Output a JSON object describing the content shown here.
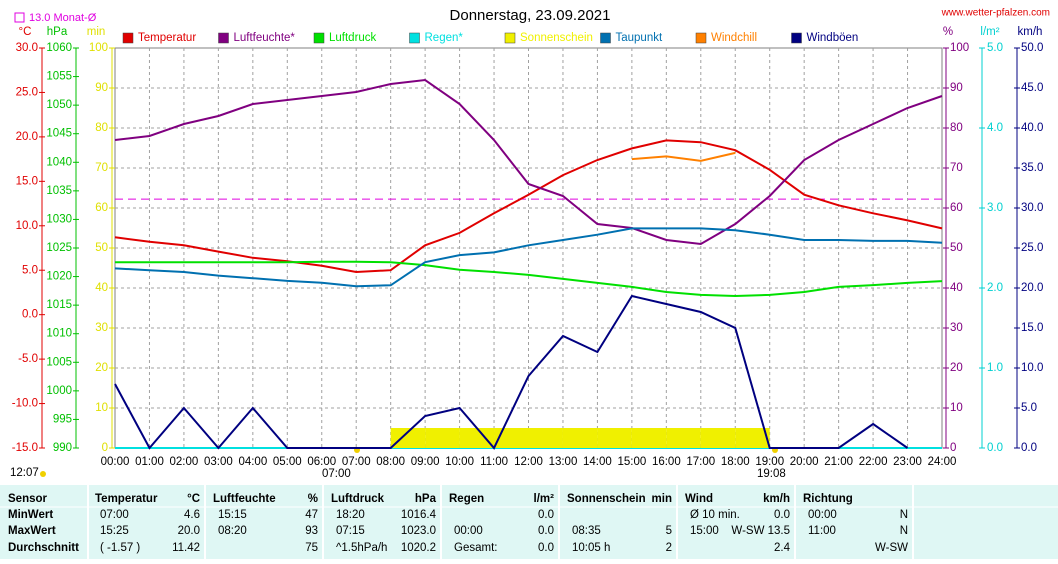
{
  "chart_data": {
    "type": "line",
    "title": "Donnerstag, 23.09.2021",
    "source": "www.wetter-pfalzen.com",
    "month_avg": {
      "value": 13,
      "label": "13.0 Monat-Ø"
    },
    "sunrise": "07:00",
    "sunset": "19:08",
    "day_length": "12:07",
    "grid": true,
    "x": [
      0,
      1,
      2,
      3,
      4,
      5,
      6,
      7,
      8,
      9,
      10,
      11,
      12,
      13,
      14,
      15,
      16,
      17,
      18,
      19,
      20,
      21,
      22,
      23,
      24
    ],
    "xlim": [
      0,
      24
    ],
    "xticks": [
      {
        "value": 0,
        "label": "00:00"
      },
      {
        "value": 1,
        "label": "01:00"
      },
      {
        "value": 2,
        "label": "02:00"
      },
      {
        "value": 3,
        "label": "03:00"
      },
      {
        "value": 4,
        "label": "04:00"
      },
      {
        "value": 5,
        "label": "05:00"
      },
      {
        "value": 6,
        "label": "06:00"
      },
      {
        "value": 7,
        "label": "07:00"
      },
      {
        "value": 8,
        "label": "08:00"
      },
      {
        "value": 9,
        "label": "09:00"
      },
      {
        "value": 10,
        "label": "10:00"
      },
      {
        "value": 11,
        "label": "11:00"
      },
      {
        "value": 12,
        "label": "12:00"
      },
      {
        "value": 13,
        "label": "13:00"
      },
      {
        "value": 14,
        "label": "14:00"
      },
      {
        "value": 15,
        "label": "15:00"
      },
      {
        "value": 16,
        "label": "16:00"
      },
      {
        "value": 17,
        "label": "17:00"
      },
      {
        "value": 18,
        "label": "18:00"
      },
      {
        "value": 19,
        "label": "19:00"
      },
      {
        "value": 20,
        "label": "20:00"
      },
      {
        "value": 21,
        "label": "21:00"
      },
      {
        "value": 22,
        "label": "22:00"
      },
      {
        "value": 23,
        "label": "23:00"
      },
      {
        "value": 24,
        "label": "24:00"
      }
    ],
    "ylabel": "°C",
    "ycolor": "#e00000",
    "ylim": [
      -15,
      30
    ],
    "yticks": [
      {
        "value": -15,
        "label": "-15.0"
      },
      {
        "value": -10,
        "label": "-10.0"
      },
      {
        "value": -5,
        "label": "-5.0"
      },
      {
        "value": 0,
        "label": "0.0"
      },
      {
        "value": 5,
        "label": "5.0"
      },
      {
        "value": 10,
        "label": "10.0"
      },
      {
        "value": 15,
        "label": "15.0"
      },
      {
        "value": 20,
        "label": "20.0"
      },
      {
        "value": 25,
        "label": "25.0"
      },
      {
        "value": 30,
        "label": "30.0"
      }
    ],
    "y2label": "hPa",
    "y2color": "#00c000",
    "y2lim": [
      990,
      1060
    ],
    "y2ticks": [
      990,
      995,
      1000,
      1005,
      1010,
      1015,
      1020,
      1025,
      1030,
      1035,
      1040,
      1045,
      1050,
      1055,
      1060
    ],
    "y3label": "min",
    "y3color": "#e0e000",
    "y3lim": [
      0,
      100
    ],
    "y3ticks": [
      0,
      10,
      20,
      30,
      40,
      50,
      60,
      70,
      80,
      90,
      100
    ],
    "y4label": "%",
    "y4color": "#800080",
    "y4lim": [
      0,
      100
    ],
    "y4ticks": [
      0,
      10,
      20,
      30,
      40,
      50,
      60,
      70,
      80,
      90,
      100
    ],
    "y5label": "l/m²",
    "y5color": "#00d0d0",
    "y5lim": [
      0,
      5
    ],
    "y5ticks": [
      {
        "value": 0,
        "label": "0.0"
      },
      {
        "value": 1,
        "label": "1.0"
      },
      {
        "value": 2,
        "label": "2.0"
      },
      {
        "value": 3,
        "label": "3.0"
      },
      {
        "value": 4,
        "label": "4.0"
      },
      {
        "value": 5,
        "label": "5.0"
      }
    ],
    "y6label": "km/h",
    "y6color": "#000080",
    "y6lim": [
      0,
      50
    ],
    "y6ticks": [
      {
        "value": 0,
        "label": "0.0"
      },
      {
        "value": 5,
        "label": "5.0"
      },
      {
        "value": 10,
        "label": "10.0"
      },
      {
        "value": 15,
        "label": "15.0"
      },
      {
        "value": 20,
        "label": "20.0"
      },
      {
        "value": 25,
        "label": "25.0"
      },
      {
        "value": 30,
        "label": "30.0"
      },
      {
        "value": 35,
        "label": "35.0"
      },
      {
        "value": 40,
        "label": "40.0"
      },
      {
        "value": 45,
        "label": "45.0"
      },
      {
        "value": 50,
        "label": "50.0"
      }
    ],
    "series": [
      {
        "name": "Temperatur",
        "color": "#e00000",
        "axis": "y",
        "values": [
          8.7,
          8.2,
          7.8,
          7.1,
          6.4,
          6.0,
          5.5,
          4.8,
          5.0,
          7.8,
          9.2,
          11.4,
          13.5,
          15.7,
          17.4,
          18.7,
          19.6,
          19.4,
          18.5,
          16.3,
          13.5,
          12.3,
          11.4,
          10.6,
          9.7
        ]
      },
      {
        "name": "Luftfeuchte*",
        "color": "#800080",
        "axis": "y4",
        "values": [
          77,
          78,
          81,
          83,
          86,
          87,
          88,
          89,
          91,
          92,
          86,
          77,
          66,
          63,
          56,
          55,
          52,
          51,
          56,
          63,
          72,
          77,
          81,
          85,
          88
        ]
      },
      {
        "name": "Luftdruck",
        "color": "#00e000",
        "axis": "y2",
        "values": [
          1022.5,
          1022.5,
          1022.5,
          1022.5,
          1022.5,
          1022.5,
          1022.6,
          1022.6,
          1022.5,
          1022.0,
          1021.2,
          1020.8,
          1020.3,
          1019.6,
          1018.9,
          1018.2,
          1017.3,
          1016.8,
          1016.6,
          1016.8,
          1017.3,
          1018.2,
          1018.5,
          1018.9,
          1019.2
        ]
      },
      {
        "name": "Regen*",
        "color": "#00e0e0",
        "axis": "y5",
        "values": [
          0,
          0,
          0,
          0,
          0,
          0,
          0,
          0,
          0,
          0,
          0,
          0,
          0,
          0,
          0,
          0,
          0,
          0,
          0,
          0,
          0,
          0,
          0,
          0,
          0
        ]
      },
      {
        "name": "Sonnenschein",
        "color": "#f0f000",
        "axis": "y3",
        "values": [
          0,
          0,
          0,
          0,
          0,
          0,
          0,
          0,
          5,
          5,
          5,
          5,
          5,
          5,
          5,
          5,
          5,
          5,
          5,
          0,
          0,
          0,
          0,
          0,
          null
        ]
      },
      {
        "name": "Taupunkt",
        "color": "#0070b0",
        "axis": "y",
        "values": [
          5.2,
          5.0,
          4.8,
          4.4,
          4.1,
          3.8,
          3.6,
          3.2,
          3.3,
          5.9,
          6.7,
          7.0,
          7.8,
          8.4,
          9.0,
          9.7,
          9.7,
          9.7,
          9.5,
          9.0,
          8.4,
          8.4,
          8.3,
          8.3,
          8.1
        ]
      },
      {
        "name": "Windchill",
        "color": "#ff8000",
        "axis": "y",
        "values": [
          null,
          null,
          null,
          null,
          null,
          null,
          null,
          null,
          null,
          null,
          null,
          null,
          null,
          null,
          null,
          17.5,
          17.8,
          17.3,
          18.2,
          null,
          null,
          null,
          null,
          null,
          null
        ]
      },
      {
        "name": "Windböen",
        "color": "#000080",
        "axis": "y6",
        "values": [
          8,
          0,
          5,
          0,
          5,
          0,
          0,
          0,
          0,
          4,
          5,
          0,
          9,
          14,
          12,
          19,
          18,
          17,
          15,
          0,
          0,
          0,
          3,
          0,
          null
        ]
      }
    ]
  },
  "table": {
    "row_labels": [
      "Sensor",
      "MinWert",
      "MaxWert",
      "Durchschnitt"
    ],
    "columns": [
      {
        "name": "Temperatur",
        "unit": "°C",
        "rows": [
          [
            "07:00",
            "4.6"
          ],
          [
            "15:25",
            "20.0"
          ],
          [
            "( -1.57 )",
            "11.42"
          ]
        ]
      },
      {
        "name": "Luftfeuchte",
        "unit": "%",
        "rows": [
          [
            "15:15",
            "47"
          ],
          [
            "08:20",
            "93"
          ],
          [
            null,
            "75"
          ]
        ]
      },
      {
        "name": "Luftdruck",
        "unit": "hPa",
        "rows": [
          [
            "18:20",
            "1016.4"
          ],
          [
            "07:15",
            "1023.0"
          ],
          [
            "^1.5hPa/h",
            "1020.2"
          ]
        ]
      },
      {
        "name": "Regen",
        "unit": "l/m²",
        "rows": [
          [
            null,
            "0.0"
          ],
          [
            "00:00",
            "0.0"
          ],
          [
            "Gesamt:",
            "0.0"
          ]
        ]
      },
      {
        "name": "Sonnenschein",
        "unit": "min",
        "rows": [
          [
            null,
            null
          ],
          [
            "08:35",
            "5"
          ],
          [
            "10:05 h",
            "2"
          ]
        ]
      },
      {
        "name": "Wind",
        "unit": "km/h",
        "rows": [
          [
            "Ø 10 min.",
            "0.0"
          ],
          [
            "15:00",
            "W-SW 13.5"
          ],
          [
            null,
            "2.4"
          ]
        ]
      },
      {
        "name": "Richtung",
        "unit": null,
        "rows": [
          [
            "00:00",
            "N"
          ],
          [
            "11:00",
            "N"
          ],
          [
            null,
            "W-SW"
          ]
        ]
      }
    ]
  }
}
